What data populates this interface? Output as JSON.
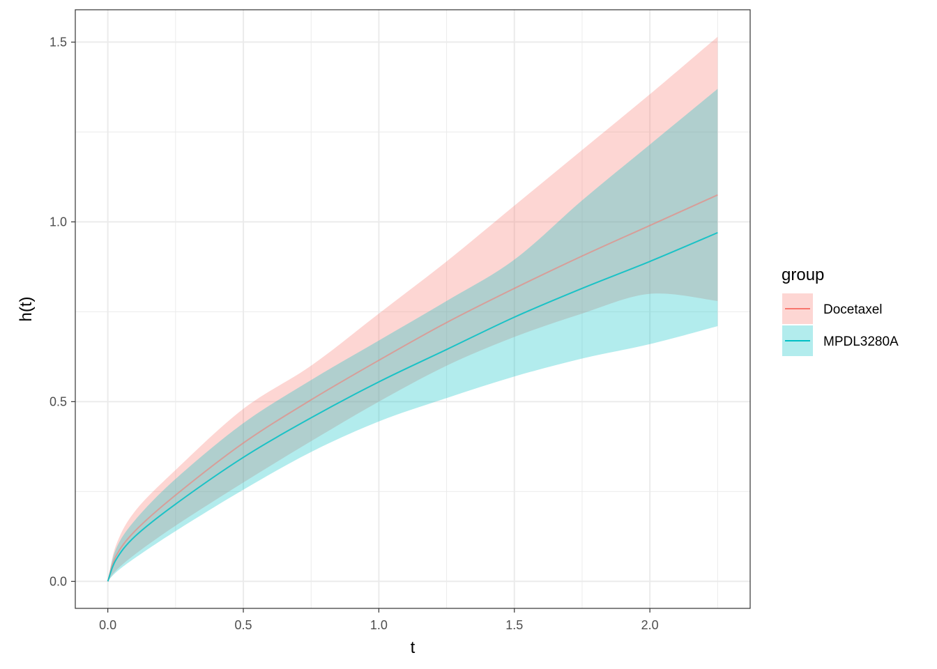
{
  "chart_data": {
    "type": "area",
    "xlabel": "t",
    "ylabel": "h(t)",
    "xlim": [
      -0.12,
      2.37
    ],
    "ylim": [
      -0.075,
      1.59
    ],
    "x_ticks": [
      0.0,
      0.5,
      1.0,
      1.5,
      2.0
    ],
    "x_tick_labels": [
      "0.0",
      "0.5",
      "1.0",
      "1.5",
      "2.0"
    ],
    "y_ticks": [
      0.0,
      0.5,
      1.0,
      1.5
    ],
    "y_tick_labels": [
      "0.0",
      "0.5",
      "1.0",
      "1.5"
    ],
    "grid": true,
    "legend": {
      "title": "group",
      "placement": "right"
    },
    "series": [
      {
        "name": "Docetaxel",
        "color": "#F8766D",
        "x": [
          0.0,
          0.03,
          0.1,
          0.25,
          0.5,
          0.75,
          1.0,
          1.25,
          1.5,
          1.75,
          2.0,
          2.25
        ],
        "y": [
          0.0,
          0.07,
          0.14,
          0.24,
          0.385,
          0.505,
          0.615,
          0.72,
          0.815,
          0.905,
          0.99,
          1.075
        ],
        "lower": [
          0.0,
          0.03,
          0.075,
          0.155,
          0.275,
          0.39,
          0.5,
          0.6,
          0.68,
          0.745,
          0.8,
          0.78
        ],
        "upper": [
          0.0,
          0.1,
          0.195,
          0.31,
          0.48,
          0.6,
          0.745,
          0.89,
          1.045,
          1.2,
          1.355,
          1.515
        ]
      },
      {
        "name": "MPDL3280A",
        "color": "#00BFC4",
        "x": [
          0.0,
          0.03,
          0.1,
          0.25,
          0.5,
          0.75,
          1.0,
          1.25,
          1.5,
          1.75,
          2.0,
          2.25
        ],
        "y": [
          0.0,
          0.06,
          0.125,
          0.215,
          0.345,
          0.455,
          0.555,
          0.645,
          0.735,
          0.815,
          0.89,
          0.97
        ],
        "lower": [
          0.0,
          0.025,
          0.065,
          0.14,
          0.255,
          0.36,
          0.445,
          0.51,
          0.57,
          0.62,
          0.66,
          0.71
        ],
        "upper": [
          0.0,
          0.09,
          0.17,
          0.285,
          0.44,
          0.56,
          0.67,
          0.78,
          0.895,
          1.06,
          1.215,
          1.37
        ]
      }
    ]
  }
}
